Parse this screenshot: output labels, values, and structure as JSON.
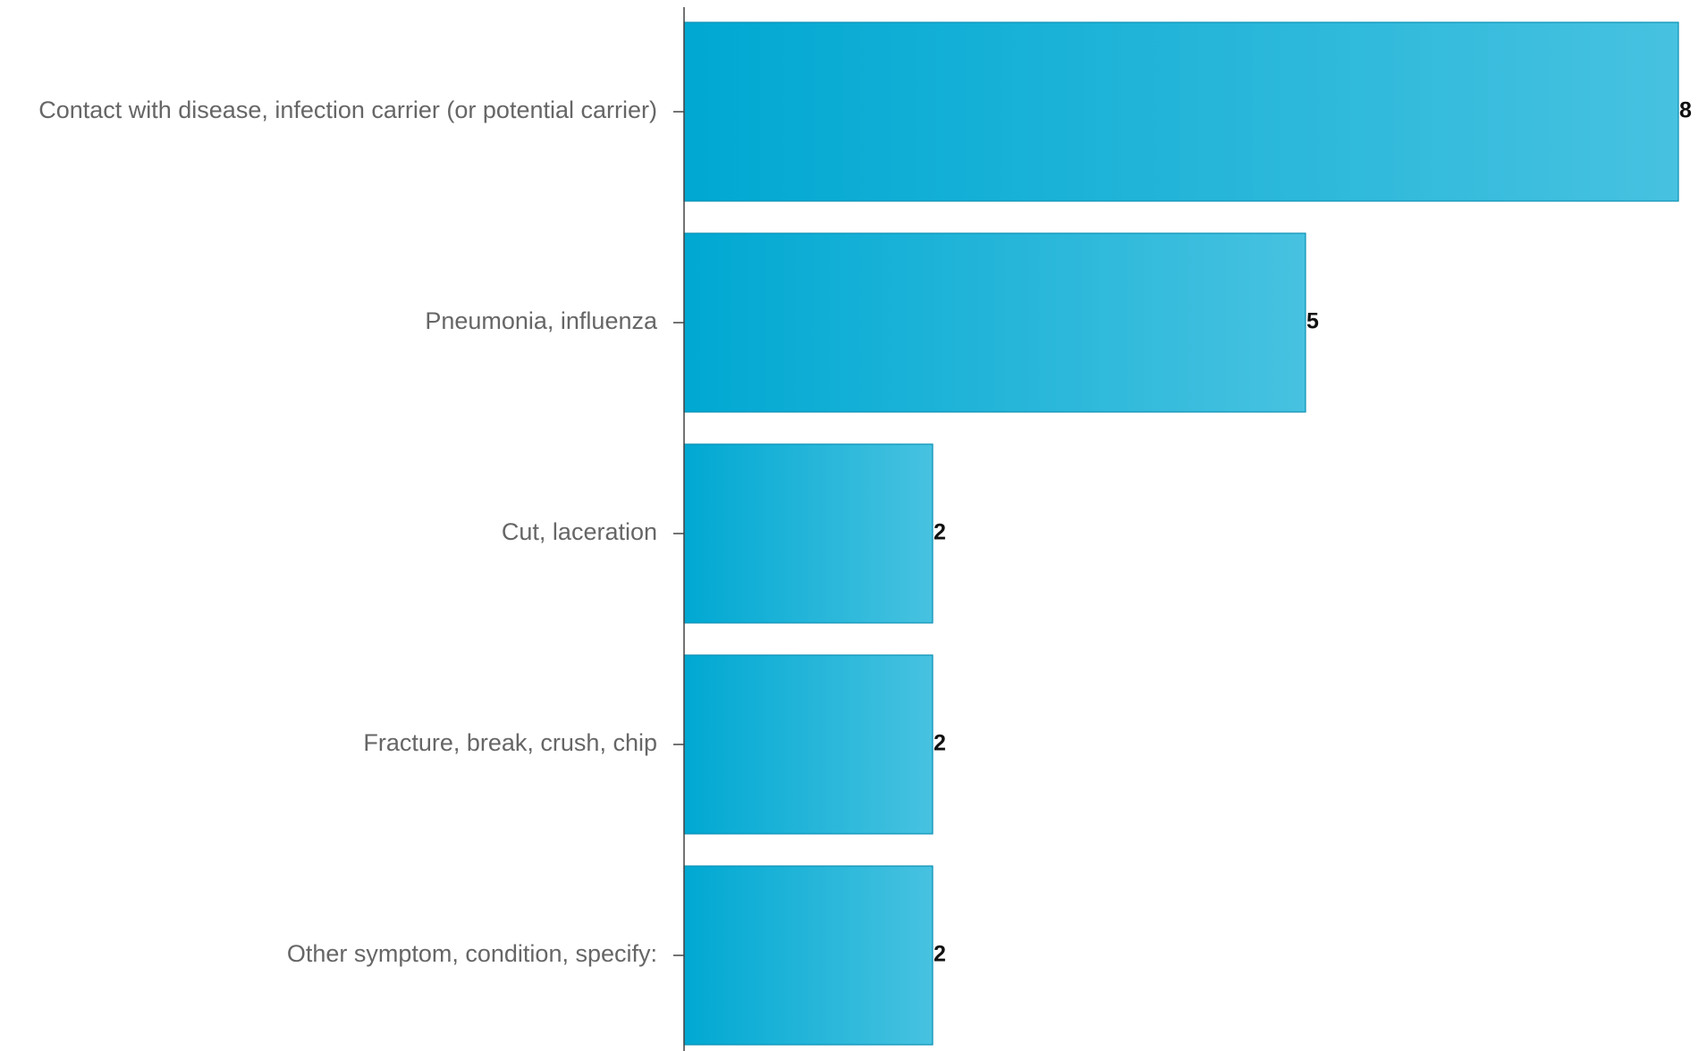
{
  "chart_data": {
    "type": "bar",
    "orientation": "horizontal",
    "categories": [
      "Contact with disease, infection carrier (or potential carrier)",
      "Pneumonia, influenza",
      "Cut, laceration",
      "Fracture, break, crush, chip",
      "Other symptom, condition, specify:"
    ],
    "values": [
      8,
      5,
      2,
      2,
      2
    ],
    "xlim": [
      0,
      8
    ],
    "grid": false,
    "legend": "none",
    "colors": {
      "bar_start": "#00a8d2",
      "bar_end": "#47c2e0",
      "bar_border": "#0a8fb5"
    }
  }
}
